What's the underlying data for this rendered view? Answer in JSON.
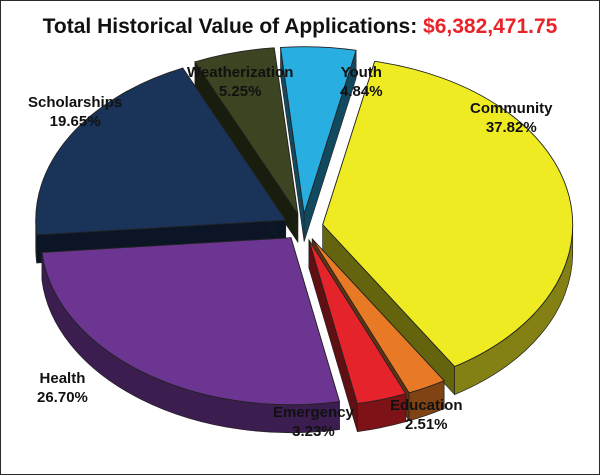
{
  "chart_data": {
    "type": "pie",
    "title": "Total Historical Value of Applications:",
    "total": "$6,382,471.75",
    "slices": [
      {
        "name": "Community",
        "value": 37.82,
        "percent_label": "37.82%",
        "color": "#eeeb22"
      },
      {
        "name": "Education",
        "value": 2.51,
        "percent_label": "2.51%",
        "color": "#e87a25"
      },
      {
        "name": "Emergency",
        "value": 3.23,
        "percent_label": "3.23%",
        "color": "#e5232a"
      },
      {
        "name": "Health",
        "value": 26.7,
        "percent_label": "26.70%",
        "color": "#6c3591"
      },
      {
        "name": "Scholarships",
        "value": 19.65,
        "percent_label": "19.65%",
        "color": "#1a3358"
      },
      {
        "name": "Weatherization",
        "value": 5.25,
        "percent_label": "5.25%",
        "color": "#3c4421"
      },
      {
        "name": "Youth",
        "value": 4.84,
        "percent_label": "4.84%",
        "color": "#29aee1"
      }
    ]
  }
}
